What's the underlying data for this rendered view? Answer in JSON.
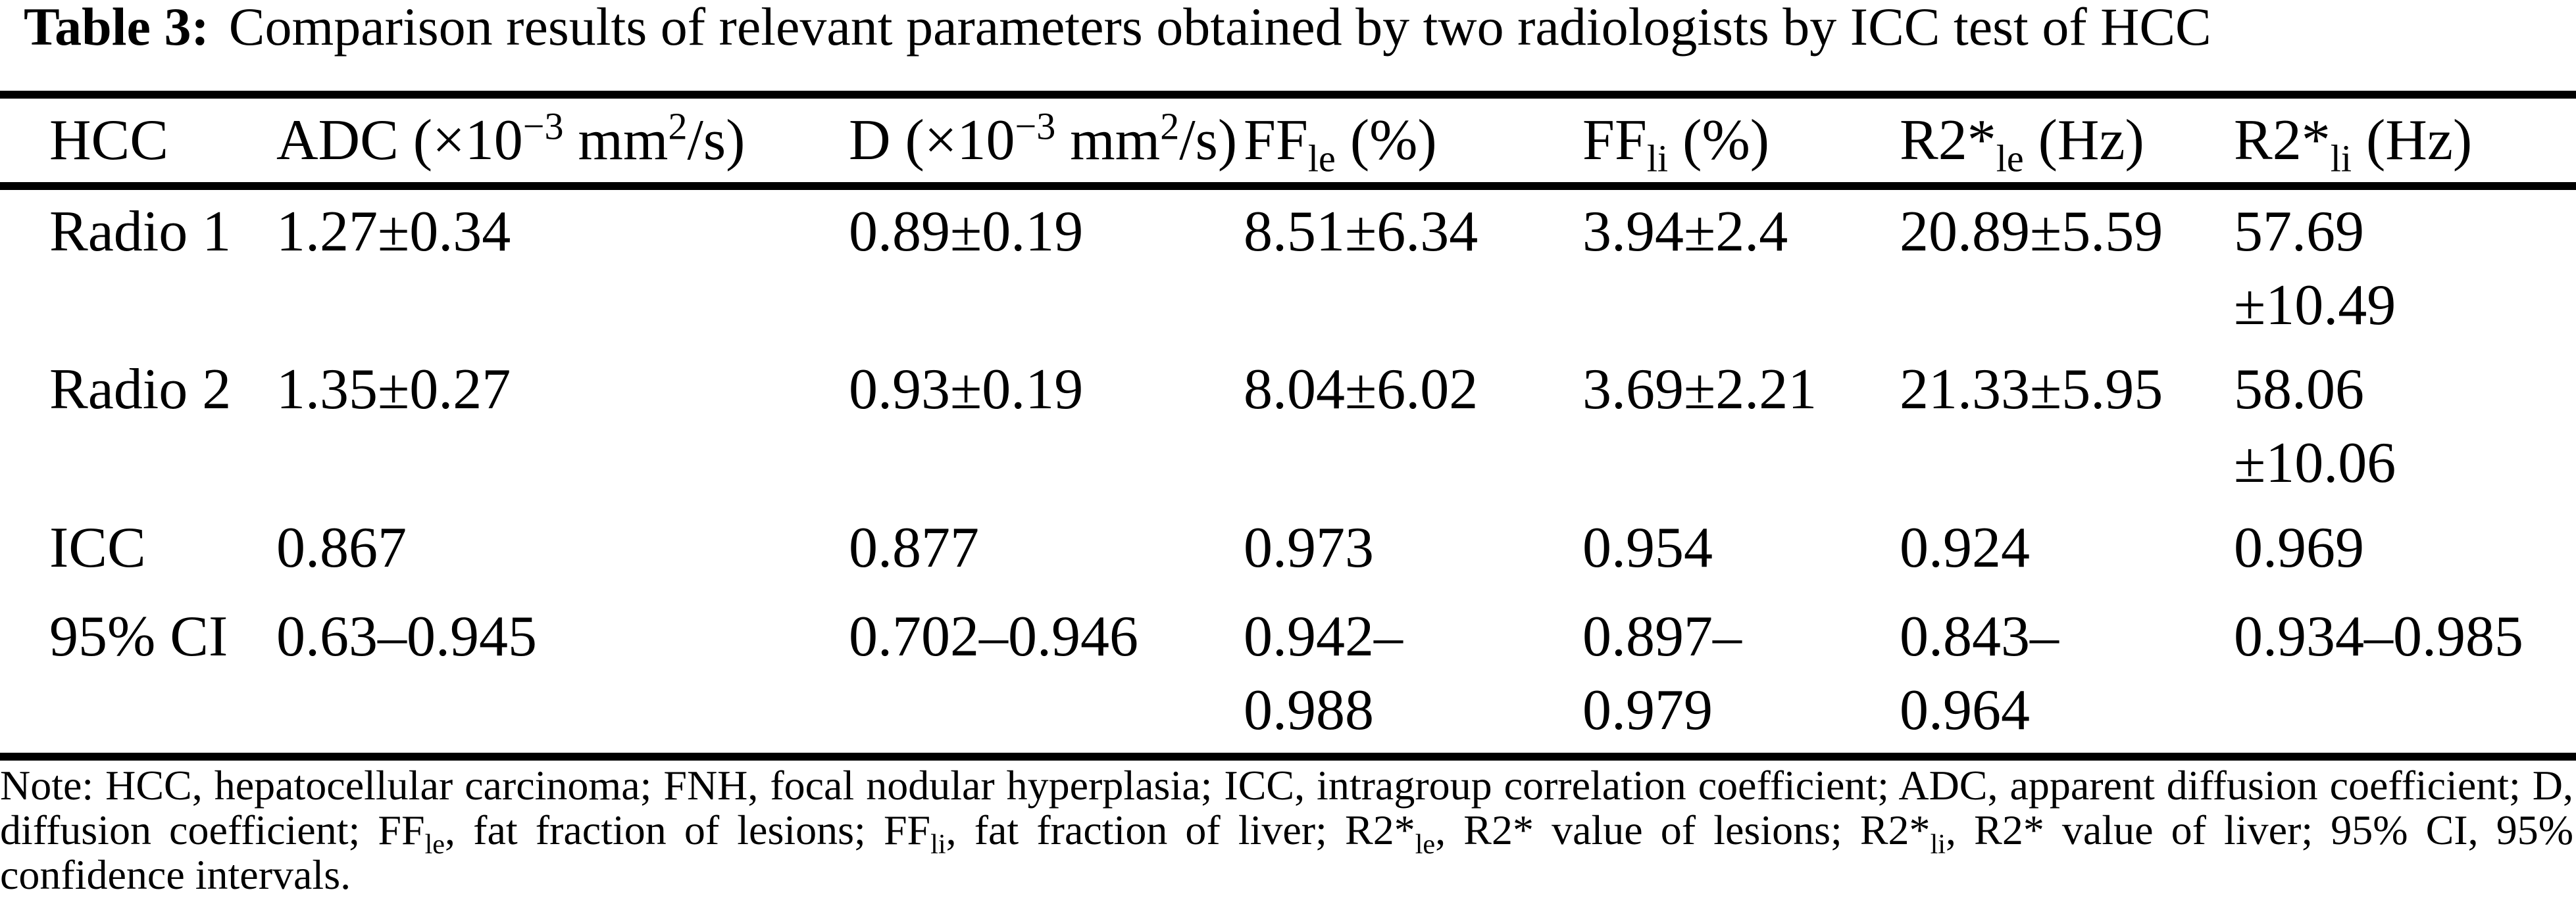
{
  "title": {
    "label": "Table 3:",
    "text": "Comparison results of relevant parameters obtained by two radiologists by ICC test of HCC"
  },
  "table": {
    "header": [
      {
        "name": "hcc",
        "segments": [
          {
            "t": "HCC"
          }
        ]
      },
      {
        "name": "adc",
        "segments": [
          {
            "t": "ADC (×10"
          },
          {
            "t": "−3",
            "style": "sup"
          },
          {
            "t": " mm"
          },
          {
            "t": "2",
            "style": "sup"
          },
          {
            "t": "/s)"
          }
        ]
      },
      {
        "name": "d",
        "segments": [
          {
            "t": "D (×10"
          },
          {
            "t": "−3",
            "style": "sup"
          },
          {
            "t": " mm"
          },
          {
            "t": "2",
            "style": "sup"
          },
          {
            "t": "/s)"
          }
        ]
      },
      {
        "name": "ff-le",
        "segments": [
          {
            "t": "FF"
          },
          {
            "t": "le",
            "style": "sub"
          },
          {
            "t": " (%)"
          }
        ]
      },
      {
        "name": "ff-li",
        "segments": [
          {
            "t": "FF"
          },
          {
            "t": "li",
            "style": "sub"
          },
          {
            "t": " (%)"
          }
        ]
      },
      {
        "name": "r2-le",
        "segments": [
          {
            "t": "R2*"
          },
          {
            "t": "le",
            "style": "sub"
          },
          {
            "t": " (Hz)"
          }
        ]
      },
      {
        "name": "r2-li",
        "segments": [
          {
            "t": "R2*"
          },
          {
            "t": "li",
            "style": "sub"
          },
          {
            "t": " (Hz)"
          }
        ]
      }
    ],
    "rows": [
      {
        "label": "Radio 1",
        "cells": [
          [
            "1.27±0.34"
          ],
          [
            "0.89±0.19"
          ],
          [
            "8.51±6.34"
          ],
          [
            "3.94±2.4"
          ],
          [
            "20.89±5.59"
          ],
          [
            "57.69",
            "±10.49"
          ]
        ]
      },
      {
        "label": "Radio 2",
        "cells": [
          [
            "1.35±0.27"
          ],
          [
            "0.93±0.19"
          ],
          [
            "8.04±6.02"
          ],
          [
            "3.69±2.21"
          ],
          [
            "21.33±5.95"
          ],
          [
            "58.06",
            "±10.06"
          ]
        ]
      },
      {
        "label": "ICC",
        "cells": [
          [
            "0.867"
          ],
          [
            "0.877"
          ],
          [
            "0.973"
          ],
          [
            "0.954"
          ],
          [
            "0.924"
          ],
          [
            "0.969"
          ]
        ]
      },
      {
        "label": "95% CI",
        "cells": [
          [
            "0.63–0.945"
          ],
          [
            "0.702–0.946"
          ],
          [
            "0.942–",
            "0.988"
          ],
          [
            "0.897–",
            "0.979"
          ],
          [
            "0.843–",
            "0.964"
          ],
          [
            "0.934–0.985"
          ]
        ]
      }
    ]
  },
  "note": {
    "segments": [
      {
        "t": "Note: HCC, hepatocellular carcinoma; FNH, focal nodular hyperplasia; ICC, intragroup correlation coefficient; ADC, apparent diffusion coefficient; D, diffusion coefficient; FF"
      },
      {
        "t": "le",
        "style": "sub"
      },
      {
        "t": ", fat fraction of lesions; FF"
      },
      {
        "t": "li",
        "style": "sub"
      },
      {
        "t": ", fat fraction of liver; R2*"
      },
      {
        "t": "le",
        "style": "sub"
      },
      {
        "t": ", R2* value of lesions; R2*"
      },
      {
        "t": "li",
        "style": "sub"
      },
      {
        "t": ", R2* value of liver; 95% CI, 95% confidence intervals."
      }
    ]
  }
}
